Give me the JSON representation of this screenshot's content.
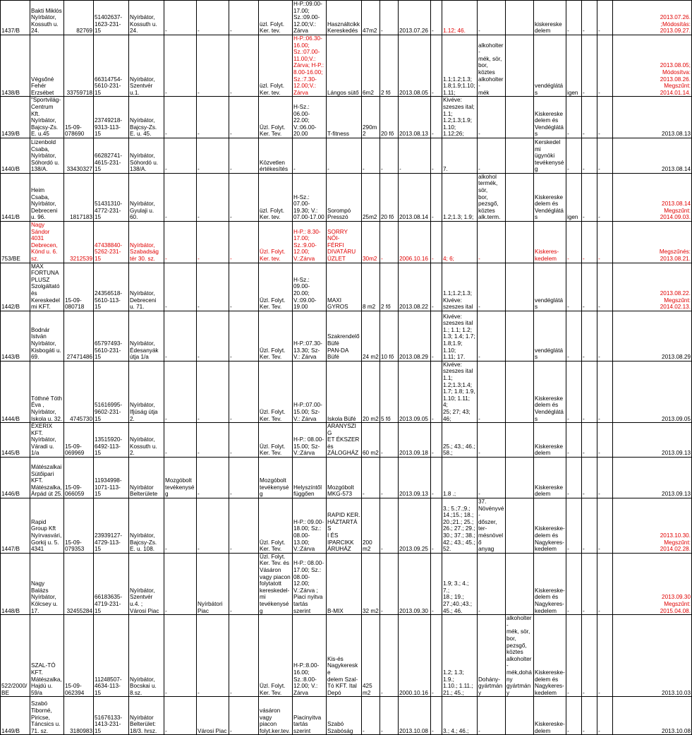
{
  "rows": [
    {
      "h": 46,
      "cells": [
        {
          "t": "1437/B"
        },
        {
          "t": "Bakti Miklós\nNyírbátor,\nKossuth u.\n24."
        },
        {
          "t": "82769",
          "r": 1
        },
        {
          "t": "51402637-\n1623-231-\n15"
        },
        {
          "t": "Nyírbátor,\nKossuth u.\n24."
        },
        {
          "t": "-"
        },
        {
          "t": "-"
        },
        {
          "t": "-"
        },
        {
          "t": "üzl. Folyt.\nKer. tev."
        },
        {
          "t": "H-P.:09.00-\n17.00;\nSz.:09.00-\n12.00;V.:\nZárva"
        },
        {
          "t": "Használtcikk\nKereskedés"
        },
        {
          "t": "47m2"
        },
        {
          "t": "-"
        },
        {
          "t": "2013.07.26"
        },
        {
          "t": "-"
        },
        {
          "t": "1.12; 46.",
          "c": "red"
        },
        {
          "t": "-"
        },
        {
          "t": ""
        },
        {
          "t": "kiskereskedelem"
        },
        {
          "t": "-"
        },
        {
          "t": "-"
        },
        {
          "t": "-"
        },
        {
          "t": "2013.07.26.\n;Módosítás:\n2013.09.27.",
          "c": "red",
          "r": 1
        }
      ]
    },
    {
      "h": 83,
      "cells": [
        {
          "t": "1438/B"
        },
        {
          "t": "Végsőné\nFehér\nErzsébet"
        },
        {
          "t": "33759718",
          "r": 1
        },
        {
          "t": "66314754-\n5610-231-\n15"
        },
        {
          "t": "Nyírbátor,\nSzentvér\nu.1."
        },
        {
          "t": "-"
        },
        {
          "t": "-"
        },
        {
          "t": "-"
        },
        {
          "t": "üzl. Folyt.\nKer. tev."
        },
        {
          "t": "H-P.:06.30-\n16.00;\nSz.:07.00-\n11.00;V.:\nZárva; H-P.:\n8.00-16.00;\nSz.:7.30-\n12.00;V.:\nZárva",
          "c": "red"
        },
        {
          "t": "Lángos sütő"
        },
        {
          "t": "6m2"
        },
        {
          "t": "2 fő"
        },
        {
          "t": "2013.08.05"
        },
        {
          "t": "-"
        },
        {
          "t": "1.1;1.2;1.3;\n1.8;1.9;1.10;\n1.11;"
        },
        {
          "t": "alkoholter-\nmék, sör,\nbor, köztes\nalkoholter-\nmék"
        },
        {
          "t": ""
        },
        {
          "t": "vendéglátás"
        },
        {
          "t": "igen"
        },
        {
          "t": "-"
        },
        {
          "t": "-"
        },
        {
          "t": "2013.08.05;\nMódosítva:\n2013.08.26.\nMegszűnt:\n2014.01.14.",
          "c": "red",
          "r": 1
        }
      ]
    },
    {
      "h": 52,
      "cells": [
        {
          "t": "1439/B"
        },
        {
          "t": "\"Sportvilág-\nCentrum\nKft.\nNyírbátor,\nBajcsy-Zs.\nE. u.45"
        },
        {
          "t": "15-09-\n078690"
        },
        {
          "t": "23749218-\n9313-113-\n15"
        },
        {
          "t": "Nyírbátor,\nBajcsy-Zs.\nE. u. 45."
        },
        {
          "t": "-"
        },
        {
          "t": "-"
        },
        {
          "t": "-"
        },
        {
          "t": "Üzl. Folyt.\nKer. Tev."
        },
        {
          "t": "H-Sz.:\n06.00-\n22.00;\nV.:06.00-\n20.00"
        },
        {
          "t": "T-fitness"
        },
        {
          "t": "290m2"
        },
        {
          "t": "20 fő"
        },
        {
          "t": "2013.08.13"
        },
        {
          "t": "-"
        },
        {
          "t": "Kivéve:\nszeszes ital;\n1.1;\n1.2;1.3;1.9;\n1.10;\n1.12;26;"
        },
        {
          "t": "-"
        },
        {
          "t": ""
        },
        {
          "t": "Kiskereskedelem és\nVendéglátás"
        },
        {
          "t": "-"
        },
        {
          "t": "-"
        },
        {
          "t": "-"
        },
        {
          "t": "2013.08.13",
          "r": 1
        }
      ]
    },
    {
      "h": 50,
      "cells": [
        {
          "t": "1440/B"
        },
        {
          "t": "Lizenbold\nCsaba,\nNyírbátor,\nSóhordó u.\n138/A."
        },
        {
          "t": "33430327",
          "r": 1
        },
        {
          "t": "66282741-\n4615-231-\n15"
        },
        {
          "t": "Nyírbátor,\nSóhordó u.\n138/A."
        },
        {
          "t": "-"
        },
        {
          "t": "-"
        },
        {
          "t": "-"
        },
        {
          "t": "Közvetlen\nértékesítés"
        },
        {
          "t": "-"
        },
        {
          "t": "-"
        },
        {
          "t": "-"
        },
        {
          "t": "-"
        },
        {
          "t": "-"
        },
        {
          "t": "-"
        },
        {
          "t": "7."
        },
        {
          "t": "-"
        },
        {
          "t": ""
        },
        {
          "t": "Kerskedelmi\nügynöki\ntevékenység"
        },
        {
          "t": "-"
        },
        {
          "t": "-"
        },
        {
          "t": "-"
        },
        {
          "t": "2013.08.14",
          "r": 1
        }
      ]
    },
    {
      "h": 57,
      "cells": [
        {
          "t": "1441/B"
        },
        {
          "t": "Heim\nCsaba,\nNyírbátor,\nDebreceni\nu. 96."
        },
        {
          "t": "1817183",
          "r": 1
        },
        {
          "t": "51431310-\n4772-231-\n15"
        },
        {
          "t": "Nyírbátor,\nGyulaji u.\n60."
        },
        {
          "t": "-"
        },
        {
          "t": "-"
        },
        {
          "t": "-"
        },
        {
          "t": "üzl. Folyt.\nKer. tev."
        },
        {
          "t": "H-Sz.:\n07.00-\n19.30; V.:\n07.00-17.00"
        },
        {
          "t": "Sorompó\nPresszó"
        },
        {
          "t": "25m2"
        },
        {
          "t": "20 fő"
        },
        {
          "t": "2013.08.14"
        },
        {
          "t": "-"
        },
        {
          "t": "1.2;1.3; 1.9;"
        },
        {
          "t": "alkohol\ntermék, sör,\nbor, pezsgő,\nköztes\nalk.term."
        },
        {
          "t": ""
        },
        {
          "t": "Kiskereskedelem és\nVendéglátás"
        },
        {
          "t": "igen"
        },
        {
          "t": "-"
        },
        {
          "t": "-"
        },
        {
          "t": "2013.08.14\nMegszűnt:\n2014.09.03.",
          "c": "red",
          "r": 1
        }
      ]
    },
    {
      "h": 39,
      "red": true,
      "cells": [
        {
          "t": "753/BE",
          "c": "black"
        },
        {
          "t": "Nagy\nSándor\n4031\nDebrecen,\nKönd u. 6.\nsz."
        },
        {
          "t": "3212539",
          "r": 1
        },
        {
          "t": "47438840-\n5262-231-\n15"
        },
        {
          "t": "Nyírbátor,\nSzabadság\ntér 30. sz."
        },
        {
          "t": "-"
        },
        {
          "t": "-"
        },
        {
          "t": "-"
        },
        {
          "t": "Üzl. Folyt.\nKer. tev."
        },
        {
          "t": "H-P.: 8.30-\n17.00;\nSz.:9.00-\n12.00;\nV.:Zárva"
        },
        {
          "t": "SORRY NŐI-\nFÉRFI\nDIVATÁRU\nÜZLET"
        },
        {
          "t": "30m2"
        },
        {
          "t": "-"
        },
        {
          "t": "2006.10.16"
        },
        {
          "t": "-"
        },
        {
          "t": "4; 6;"
        },
        {
          "t": "-"
        },
        {
          "t": ""
        },
        {
          "t": "Kiskeres-\nkedelem"
        },
        {
          "t": "-"
        },
        {
          "t": "-"
        },
        {
          "t": "-"
        },
        {
          "t": "Megszűnés:\n2013.08.21.",
          "r": 1
        }
      ]
    },
    {
      "h": 68,
      "cells": [
        {
          "t": "1442/B"
        },
        {
          "t": "MAX\nFORTUNA\nPLUSZ\nSzolgáltató\nés\nKereskedel\nmi KFT."
        },
        {
          "t": "15-09-\n080718"
        },
        {
          "t": "24356518-\n5610-113-\n15"
        },
        {
          "t": "Nyírbátor,\nDebreceni\nu. 71."
        },
        {
          "t": "-"
        },
        {
          "t": "-"
        },
        {
          "t": "-"
        },
        {
          "t": "Üzl. Folyt.\nKer. Tev."
        },
        {
          "t": "H-Sz.:\n09.00-\n20.00;\nV.:09.00-\n19.00"
        },
        {
          "t": "MAXI\nGYROS"
        },
        {
          "t": "8 m2"
        },
        {
          "t": "2 fő"
        },
        {
          "t": "2013.08.22"
        },
        {
          "t": "-"
        },
        {
          "t": "1.1;1.2;1.3;\nKivéve:\nszeszes ital"
        },
        {
          "t": "-"
        },
        {
          "t": ""
        },
        {
          "t": "vendéglátás"
        },
        {
          "t": "-"
        },
        {
          "t": "-"
        },
        {
          "t": "-"
        },
        {
          "t": "2013.08.22.\nMegszűnt:\n2014.02.13.",
          "c": "red",
          "r": 1
        }
      ]
    },
    {
      "h": 71,
      "cells": [
        {
          "t": "1443/B"
        },
        {
          "t": "Bodnár\nIstván\nNyírbátor,\nKisbogáti u.\n69."
        },
        {
          "t": "27471486",
          "r": 1
        },
        {
          "t": "65797493-\n5610-231-\n15"
        },
        {
          "t": "Nyírbátor,\nÉdesanyák\nútja 1/a"
        },
        {
          "t": "-"
        },
        {
          "t": "-"
        },
        {
          "t": "-"
        },
        {
          "t": "Üzl. Folyt.\nKer. Tev."
        },
        {
          "t": "H-P.:07.30-\n13.30; Sz-\nV.: Zárva"
        },
        {
          "t": "Szakrendelő\nBüfé\nPAN-DA Büfé"
        },
        {
          "t": "24 m2"
        },
        {
          "t": "10 fő"
        },
        {
          "t": "2013.08.29"
        },
        {
          "t": "-"
        },
        {
          "t": "Kivéve:\nszeszes ital\n1.; 1.1; 1.2;\n1.3; 1.4; 1.7;\n1.8;1.9; 1.10;\n1.11; 17."
        },
        {
          "t": "-"
        },
        {
          "t": ""
        },
        {
          "t": "vendéglátás"
        },
        {
          "t": "-"
        },
        {
          "t": "-"
        },
        {
          "t": "-"
        },
        {
          "t": "2013.08.29",
          "r": 1
        }
      ]
    },
    {
      "h": 80,
      "cells": [
        {
          "t": "1444/B"
        },
        {
          "t": "Tóthné Tóth\nÉva ,\nNyírbátor,\nIskola u. 32."
        },
        {
          "t": "4745730",
          "r": 1
        },
        {
          "t": "51616995-\n9602-231-\n15"
        },
        {
          "t": "Nyírbátor,\nIfjúság útja\n2."
        },
        {
          "t": "-"
        },
        {
          "t": "-"
        },
        {
          "t": "-"
        },
        {
          "t": "Üzl. Folyt.\nKer. Tev."
        },
        {
          "t": "H-P.:07.00-\n15.00; Sz-\nV.: Zárva"
        },
        {
          "t": "Iskola Büfé"
        },
        {
          "t": "20 m2"
        },
        {
          "t": "5 fő"
        },
        {
          "t": "2013.09.05"
        },
        {
          "t": "-"
        },
        {
          "t": "Kivéve:\nszeszes ital\n1.1;\n1.2;1.3;1.4;\n1.7; 1.8; 1.9,\n1.10; 1.11; 4;\n25; 27; 43;\n46;"
        },
        {
          "t": "-"
        },
        {
          "t": ""
        },
        {
          "t": "Kiskereskedelem és\nVendéglátás"
        },
        {
          "t": "-"
        },
        {
          "t": "-"
        },
        {
          "t": "-"
        },
        {
          "t": "2013.09.05",
          "r": 1
        }
      ]
    },
    {
      "h": 45,
      "cells": [
        {
          "t": "1445/B"
        },
        {
          "t": "ÉXERIX\nKFT.\nNyírbátor,\nVáradi u.\n1/a"
        },
        {
          "t": "15-09-\n069969"
        },
        {
          "t": "13515920-\n6492-113-\n15"
        },
        {
          "t": "Nyírbátor,\nKossuth u.\n2."
        },
        {
          "t": "-"
        },
        {
          "t": "-"
        },
        {
          "t": "-"
        },
        {
          "t": "Üzl. Folyt.\nKer. Tev."
        },
        {
          "t": "H-P.: 08.00-\n15.00; Sz-\nV.:Zárva"
        },
        {
          "t": "ARANYSZIG\nET ÉKSZER\nés\nZÁLOGHÁZ"
        },
        {
          "t": "60 m2"
        },
        {
          "t": "-"
        },
        {
          "t": "2013.09.18"
        },
        {
          "t": "-"
        },
        {
          "t": "25.; 43.; 46.;\n58.;"
        },
        {
          "t": "-"
        },
        {
          "t": ""
        },
        {
          "t": "Kiskereskedelem"
        },
        {
          "t": "-"
        },
        {
          "t": "-"
        },
        {
          "t": "-"
        },
        {
          "t": "2013.09.13",
          "r": 1
        }
      ]
    },
    {
      "h": 58,
      "cells": [
        {
          "t": "1446/B"
        },
        {
          "t": "Mátészalkai\nSütőipari\nKFT.\nMátészalka,\nÁrpád út 25."
        },
        {
          "t": "15-09-\n066059"
        },
        {
          "t": "11934998-\n1071-113-\n15"
        },
        {
          "t": "Nyírbátor\nBelterülete"
        },
        {
          "t": "Mozgóbolt\ntevékenység"
        },
        {
          "t": "-"
        },
        {
          "t": "-"
        },
        {
          "t": "Mozgóbolt\ntevékenység"
        },
        {
          "t": "Helyszíntől\nfüggően"
        },
        {
          "t": "Mozgóbolt\nMKG-573"
        },
        {
          "t": "-"
        },
        {
          "t": "-"
        },
        {
          "t": "2013.09.13"
        },
        {
          "t": "-"
        },
        {
          "t": "1.8 .;"
        },
        {
          "t": "-"
        },
        {
          "t": ""
        },
        {
          "t": "Kiskereskedelem"
        },
        {
          "t": "-"
        },
        {
          "t": "-"
        },
        {
          "t": "-"
        },
        {
          "t": "2013.09.13",
          "r": 1
        }
      ]
    },
    {
      "h": 71,
      "cells": [
        {
          "t": "1447/B"
        },
        {
          "t": "Rapid\nGroup Kft\nNyírvasvári,\nGorkij u. 5.\n4341"
        },
        {
          "t": "15-09-\n079353"
        },
        {
          "t": "23939127-\n4729-113-\n15"
        },
        {
          "t": "Nyírbátor,\nBajcsy-Zs.\nE. u. 108."
        },
        {
          "t": "-"
        },
        {
          "t": "-"
        },
        {
          "t": "-"
        },
        {
          "t": "Üzl. Folyt.\nKer. Tev."
        },
        {
          "t": "H-P.: 09.00-\n18.00; Sz.:\n08.00-\n13.00;\nV.:Zárva"
        },
        {
          "t": "RAPID KER.\nHÁZTARTÁS\nI ÉS\nIPARCIKK\nÁRUHÁZ"
        },
        {
          "t": "200\nm2"
        },
        {
          "t": "-"
        },
        {
          "t": "2013.09.25"
        },
        {
          "t": "-"
        },
        {
          "t": "3.; 5.;7.;9.;\n14.;15.; 18.;\n20.;21.; 25.;\n26.; 27.; 29.;\n30.; 37.; 38.;\n42.; 43.; 45.;\n52."
        },
        {
          "t": "37.\nNövényvé-\ndőszer, ter-\nmésnövelő\nanyag"
        },
        {
          "t": ""
        },
        {
          "t": "Kiskereske-\ndelem és\nNagykeres-\nkedelem"
        },
        {
          "t": "-"
        },
        {
          "t": "-"
        },
        {
          "t": "-"
        },
        {
          "t": "2013.10.30.\nMegszűnt:\n2014.02.28.",
          "c": "red",
          "r": 1
        }
      ]
    },
    {
      "h": 80,
      "cells": [
        {
          "t": "1448/B"
        },
        {
          "t": "Nagy\nBalázs\nNyírbátor,\nKölcsey u.\n17."
        },
        {
          "t": "32455284",
          "r": 1
        },
        {
          "t": "66183635-\n4719-231-\n15"
        },
        {
          "t": "Nyírbátor,\nSzentvér\nu.4. ;\nVárosi Piac"
        },
        {
          "t": "-"
        },
        {
          "t": "Nyírbátori\nPiac"
        },
        {
          "t": "-"
        },
        {
          "t": "Üzl. Folyt.\nKer. Tev. és\nVásáron\nvagy piacon\nfolytatott\nkereskedel-\nmi\ntevékenység"
        },
        {
          "t": "H-P.: 08.00-\n17.00; Sz.:\n08.00-\n12.00;\nV.:Zárva ;\nPiaci nyitva\ntartás\nszerint"
        },
        {
          "t": "B-MIX"
        },
        {
          "t": "32 m2"
        },
        {
          "t": "-"
        },
        {
          "t": "2013.09.30"
        },
        {
          "t": "-"
        },
        {
          "t": "1.9; 3.; 4.; 7.;\n18.; 19.;\n27.;40.;43.;\n45.; 46."
        },
        {
          "t": "-"
        },
        {
          "t": ""
        },
        {
          "t": "Kiskereske-\ndelem és\nNagykeres-\nkedelem"
        },
        {
          "t": "-"
        },
        {
          "t": "-"
        },
        {
          "t": "-"
        },
        {
          "t": "2013.09.30\nMegszűnt:\n2015.04.08.",
          "c": "red",
          "r": 1
        }
      ]
    },
    {
      "h": 66,
      "cells": [
        {
          "t": "522/2000/\nBE"
        },
        {
          "t": "SZAL-TÓ\nKFT.\nMátészalka,\nHajdú u.\n59/a"
        },
        {
          "t": "15-09-\n062394"
        },
        {
          "t": "11248507-\n4634-113-\n15"
        },
        {
          "t": "Nyírbátor,\nBocskai u.\n8.sz."
        },
        {
          "t": "-"
        },
        {
          "t": "-"
        },
        {
          "t": "-"
        },
        {
          "t": "Üzl. Folyt.\nKer. Tev."
        },
        {
          "t": "H-P.:8.00-\n16.00;\nSz.:8.00-\n12.00; V.:\nZárva"
        },
        {
          "t": "Kis-és\nNagykereske\ndelem Szal-\nTó KFT. Ital\nDepó"
        },
        {
          "t": "425\nm2"
        },
        {
          "t": "-"
        },
        {
          "t": "2000.10.16"
        },
        {
          "t": "-"
        },
        {
          "t": "1.2; 1.3; 1.9.;\n1.10.; 1.11.;\n21.; 45.;"
        },
        {
          "t": "Dohány-\ngyártmány"
        },
        {
          "t": "alkoholter-\nmék, sör,\nbor, pezsgő,\nköztes\nalkoholter-\nmék,dohány\ngyártmány"
        },
        {
          "t": "Kiskereske-\ndelem és\nNagykeres-\nkedelem"
        },
        {
          "t": "-"
        },
        {
          "t": "-"
        },
        {
          "t": "-"
        },
        {
          "t": "2013.10.03",
          "r": 1
        }
      ]
    },
    {
      "h": 54,
      "cells": [
        {
          "t": "1449/B"
        },
        {
          "t": "Szabó\nTiborné,\nPiricse,\nTáncsics u.\n71. sz."
        },
        {
          "t": "3180983",
          "r": 1
        },
        {
          "t": "51676133-\n1413-231-\n15"
        },
        {
          "t": "Nyírbátor\nBelterület:\n18/3. hrsz."
        },
        {
          "t": "-"
        },
        {
          "t": "Városi Piac"
        },
        {
          "t": "-"
        },
        {
          "t": "vásáron vagy\npiacon\nfolyt.ker.tev."
        },
        {
          "t": "Piacinyitva\ntartás\nszerint"
        },
        {
          "t": "Szabó\nSzabóság"
        },
        {
          "t": "-"
        },
        {
          "t": "-"
        },
        {
          "t": "2013.10.08"
        },
        {
          "t": "-"
        },
        {
          "t": "3.; 4.; 46.;"
        },
        {
          "t": "-"
        },
        {
          "t": ""
        },
        {
          "t": "Kiskereske-\ndelem"
        },
        {
          "t": "-"
        },
        {
          "t": "-"
        },
        {
          "t": "-"
        },
        {
          "t": "2013.10.08",
          "r": 1
        }
      ]
    }
  ]
}
